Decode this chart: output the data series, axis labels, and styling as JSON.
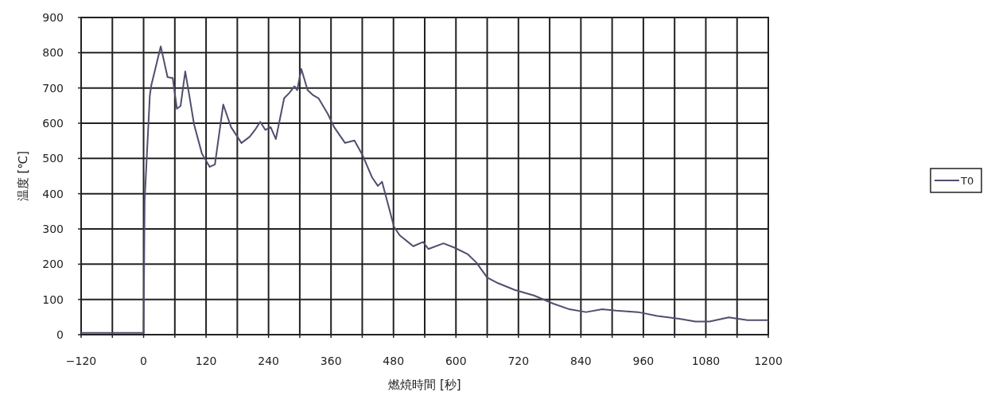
{
  "chart_data": {
    "type": "line",
    "xlabel": "燃焼時間 [秒]",
    "ylabel": "温度 [℃]",
    "xlim": [
      -120,
      1200
    ],
    "ylim": [
      0,
      900
    ],
    "xticks": [
      -120,
      {
        "value": -60,
        "label": null
      },
      0,
      {
        "value": 60,
        "label": null
      },
      120,
      {
        "value": 180,
        "label": null
      },
      240,
      {
        "value": 300,
        "label": null
      },
      360,
      {
        "value": 420,
        "label": null
      },
      480,
      {
        "value": 540,
        "label": null
      },
      600,
      {
        "value": 660,
        "label": null
      },
      720,
      {
        "value": 780,
        "label": null
      },
      840,
      {
        "value": 900,
        "label": null
      },
      960,
      {
        "value": 1020,
        "label": null
      },
      1080,
      {
        "value": 1140,
        "label": null
      },
      1200
    ],
    "yticks": [
      0,
      100,
      200,
      300,
      400,
      500,
      600,
      700,
      800,
      900
    ],
    "grid": true,
    "legend": "right",
    "marker": "none",
    "line_style": "solid",
    "series": [
      {
        "name": "T0",
        "color": "#4f4f6e",
        "x": [
          -120,
          0,
          2,
          12,
          15,
          33,
          46,
          56,
          64,
          71,
          80,
          87,
          97,
          112,
          127,
          137,
          153,
          168,
          188,
          204,
          214,
          224,
          234,
          244,
          254,
          270,
          280,
          290,
          295,
          303,
          315,
          326,
          336,
          354,
          366,
          387,
          405,
          421,
          439,
          450,
          458,
          481,
          492,
          518,
          537,
          547,
          576,
          597,
          623,
          639,
          660,
          681,
          713,
          750,
          787,
          818,
          850,
          881,
          908,
          950,
          987,
          1029,
          1060,
          1087,
          1124,
          1160,
          1200
        ],
        "values": [
          5,
          5,
          380,
          679,
          709,
          818,
          731,
          728,
          641,
          649,
          747,
          686,
          596,
          514,
          476,
          483,
          653,
          589,
          544,
          562,
          581,
          604,
          581,
          589,
          555,
          671,
          686,
          705,
          694,
          754,
          694,
          679,
          671,
          626,
          589,
          544,
          551,
          508,
          446,
          422,
          434,
          306,
          282,
          251,
          263,
          243,
          259,
          247,
          228,
          205,
          162,
          146,
          127,
          111,
          88,
          72,
          64,
          72,
          68,
          64,
          53,
          45,
          37,
          37,
          49,
          41,
          41
        ]
      }
    ]
  }
}
